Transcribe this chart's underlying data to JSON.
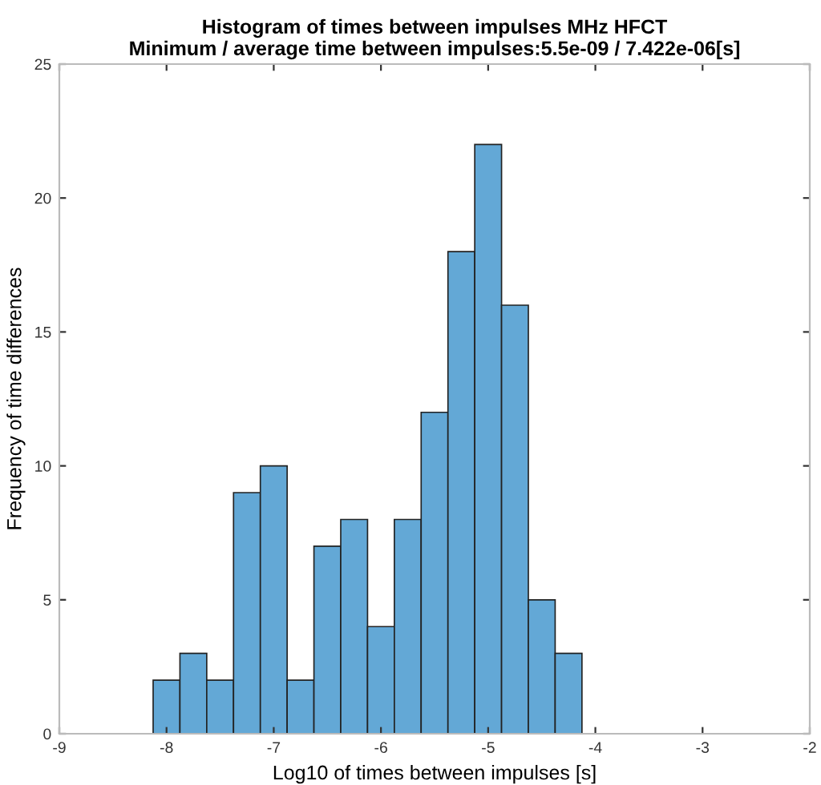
{
  "chart_data": {
    "type": "histogram",
    "title": "Histogram of times between impulses MHz HFCT\nMinimum / average time between impulses:5.5e-09 / 7.422e-06[s]",
    "xlabel": "Log10 of times between impulses [s]",
    "ylabel": "Frequency of time differences",
    "bins": [
      -8.125,
      -7.875,
      -7.625,
      -7.375,
      -7.125,
      -6.875,
      -6.625,
      -6.375,
      -6.125,
      -5.875,
      -5.625,
      -5.375,
      -5.125,
      -4.875,
      -4.625,
      -4.375,
      -4.125
    ],
    "values": [
      2,
      3,
      2,
      9,
      10,
      2,
      7,
      8,
      4,
      8,
      12,
      18,
      22,
      16,
      5,
      3
    ],
    "color": "#63a8d6",
    "xlim": [
      -9,
      -2
    ],
    "xticks": [
      -9,
      -8,
      -7,
      -6,
      -5,
      -4,
      -3,
      -2
    ],
    "ylim": [
      0,
      25
    ],
    "yticks": [
      0,
      5,
      10,
      15,
      20,
      25
    ],
    "grid": false
  }
}
